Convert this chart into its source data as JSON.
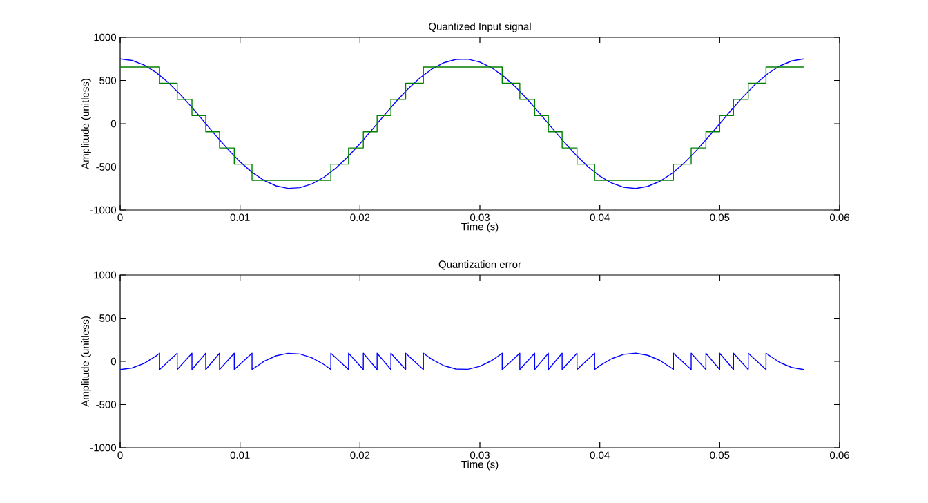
{
  "chart_data": [
    {
      "type": "line",
      "title": "Quantized Input signal",
      "xlabel": "Time (s)",
      "ylabel": "Amplitude (unitless)",
      "xlim": [
        0,
        0.06
      ],
      "ylim": [
        -1000,
        1000
      ],
      "xticks": [
        0,
        0.01,
        0.02,
        0.03,
        0.04,
        0.05,
        0.06
      ],
      "yticks": [
        -1000,
        -500,
        0,
        500,
        1000
      ],
      "series": [
        {
          "color": "#0000ff",
          "x": [
            0,
            0.001,
            0.002,
            0.003,
            0.004,
            0.005,
            0.006,
            0.007,
            0.008,
            0.009,
            0.01,
            0.011,
            0.012,
            0.013,
            0.014,
            0.015,
            0.016,
            0.017,
            0.018,
            0.019,
            0.02,
            0.021,
            0.022,
            0.023,
            0.024,
            0.025,
            0.026,
            0.027,
            0.028,
            0.029,
            0.03,
            0.031,
            0.032,
            0.033,
            0.034,
            0.035,
            0.036,
            0.037,
            0.038,
            0.039,
            0.04,
            0.041,
            0.042,
            0.043,
            0.044,
            0.045,
            0.046,
            0.047,
            0.048,
            0.049,
            0.05,
            0.051,
            0.052,
            0.053,
            0.054,
            0.055,
            0.056,
            0.057
          ],
          "values": [
            750,
            732,
            679,
            593,
            478,
            340,
            187,
            24,
            -141,
            -298,
            -441,
            -563,
            -657,
            -720,
            -749,
            -741,
            -697,
            -620,
            -513,
            -382,
            -232,
            -71,
            94,
            254,
            402,
            530,
            633,
            706,
            744,
            747,
            713,
            646,
            547,
            422,
            276,
            117,
            -47,
            -209,
            -361,
            -496,
            -607,
            -688,
            -737,
            -750,
            -726,
            -668,
            -578,
            -460,
            -319,
            -164,
            0,
            164,
            319,
            460,
            578,
            668,
            726,
            750
          ]
        },
        {
          "type": "step",
          "color": "#008000",
          "x": [
            0,
            0.00329,
            0.00476,
            0.00599,
            0.00714,
            0.00829,
            0.00952,
            0.011,
            0.01757,
            0.01905,
            0.02028,
            0.02143,
            0.02258,
            0.02381,
            0.02529,
            0.03186,
            0.03333,
            0.03457,
            0.03571,
            0.03686,
            0.0381,
            0.03957,
            0.04614,
            0.04762,
            0.04885,
            0.05,
            0.05115,
            0.05238,
            0.05386,
            0.057
          ],
          "values": [
            656,
            469,
            281,
            94,
            -94,
            -281,
            -469,
            -656,
            -469,
            -281,
            -94,
            94,
            281,
            469,
            656,
            469,
            281,
            94,
            -94,
            -281,
            -469,
            -656,
            -469,
            -281,
            -94,
            94,
            281,
            469,
            656,
            656
          ]
        }
      ]
    },
    {
      "type": "line",
      "title": "Quantization error",
      "xlabel": "Time (s)",
      "ylabel": "Amplitude (unitless)",
      "xlim": [
        0,
        0.06
      ],
      "ylim": [
        -1000,
        1000
      ],
      "xticks": [
        0,
        0.01,
        0.02,
        0.03,
        0.04,
        0.05,
        0.06
      ],
      "yticks": [
        -1000,
        -500,
        0,
        500,
        1000
      ],
      "series": [
        {
          "color": "#0000ff",
          "x": [
            0,
            0.001,
            0.002,
            0.003,
            0.00329,
            0.00329,
            0.00476,
            0.00476,
            0.00599,
            0.00599,
            0.00714,
            0.00714,
            0.00829,
            0.00829,
            0.00952,
            0.00952,
            0.011,
            0.011,
            0.012,
            0.013,
            0.014,
            0.015,
            0.016,
            0.017,
            0.01757,
            0.01757,
            0.01905,
            0.01905,
            0.02028,
            0.02028,
            0.02143,
            0.02143,
            0.02258,
            0.02258,
            0.02381,
            0.02381,
            0.02529,
            0.02529,
            0.026,
            0.027,
            0.028,
            0.029,
            0.03,
            0.031,
            0.03186,
            0.03186,
            0.03333,
            0.03333,
            0.03457,
            0.03457,
            0.03571,
            0.03571,
            0.03686,
            0.03686,
            0.0381,
            0.0381,
            0.03957,
            0.03957,
            0.04,
            0.041,
            0.042,
            0.043,
            0.044,
            0.045,
            0.046,
            0.04614,
            0.04614,
            0.04762,
            0.04762,
            0.04885,
            0.04885,
            0.05,
            0.05,
            0.05115,
            0.05115,
            0.05238,
            0.05238,
            0.05386,
            0.05386,
            0.055,
            0.056,
            0.057
          ],
          "values": [
            -94,
            -76,
            -23,
            63,
            94,
            -94,
            94,
            -94,
            94,
            -94,
            94,
            -94,
            94,
            -94,
            94,
            -94,
            94,
            -94,
            1,
            64,
            93,
            85,
            41,
            -36,
            -94,
            94,
            -94,
            94,
            -94,
            94,
            -94,
            94,
            -94,
            94,
            -94,
            94,
            -94,
            94,
            23,
            -50,
            -88,
            -91,
            -57,
            10,
            94,
            -94,
            94,
            -94,
            94,
            -94,
            94,
            -94,
            94,
            -94,
            94,
            -94,
            94,
            -94,
            -49,
            32,
            81,
            94,
            70,
            12,
            -78,
            -94,
            94,
            -94,
            94,
            -94,
            94,
            -94,
            94,
            -94,
            94,
            -94,
            94,
            -94,
            94,
            -12,
            -70,
            -94
          ]
        }
      ]
    }
  ]
}
